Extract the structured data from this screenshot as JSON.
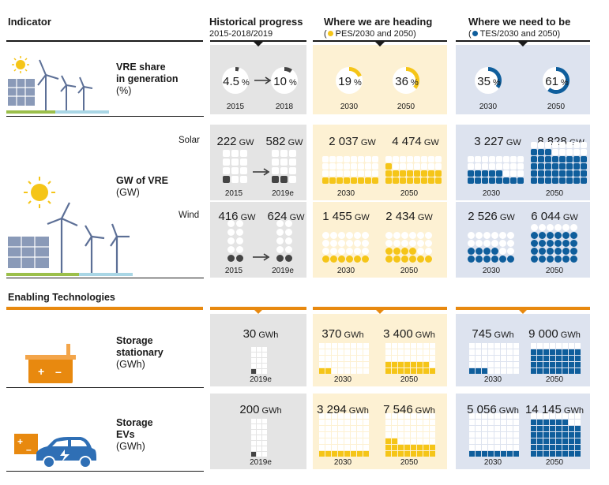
{
  "headers": {
    "indicator": "Indicator",
    "historical": "Historical progress",
    "historical_sub": "2015-2018/2019",
    "heading": "Where we are heading",
    "heading_sub_open": "(",
    "heading_sub_text": "PES/2030 and 2050)",
    "need": "Where we need to be",
    "need_sub_open": "(",
    "need_sub_text": "TES/2030 and 2050)",
    "enabling": "Enabling Technologies"
  },
  "rows": {
    "vre_share": {
      "line1": "VRE share",
      "line2": "in generation",
      "unit": "(%)"
    },
    "gw_vre": {
      "line1": "GW of VRE",
      "unit": "(GW)",
      "solar": "Solar",
      "wind": "Wind"
    },
    "stationary": {
      "line1": "Storage",
      "line2": "stationary",
      "unit": "(GWh)"
    },
    "evs": {
      "line1": "Storage",
      "line2": "EVs",
      "unit": "(GWh)"
    }
  },
  "units": {
    "pct": "%",
    "gw": "GW",
    "gwh": "GWh"
  },
  "colors": {
    "historical": "#444444",
    "pes": "#f5c518",
    "tes": "#0f5e9c",
    "accent": "#e8890f"
  },
  "icons": [
    "sun-icon",
    "solar-panel-icon",
    "wind-turbine-icon",
    "battery-icon",
    "electric-car-icon",
    "arrow-right-icon"
  ],
  "chart_data": [
    {
      "type": "pie",
      "title": "VRE share in generation",
      "unit": "%",
      "series": [
        {
          "name": "Historical progress",
          "x": [
            "2015",
            "2018"
          ],
          "values": [
            4.5,
            10
          ],
          "labels": [
            "4.5",
            "10"
          ]
        },
        {
          "name": "PES",
          "x": [
            "2030",
            "2050"
          ],
          "values": [
            19,
            36
          ],
          "labels": [
            "19",
            "36"
          ]
        },
        {
          "name": "TES",
          "x": [
            "2030",
            "2050"
          ],
          "values": [
            35,
            61
          ],
          "labels": [
            "35",
            "61"
          ]
        }
      ]
    },
    {
      "type": "table",
      "title": "Solar",
      "unit": "GW",
      "series": [
        {
          "name": "Historical progress",
          "x": [
            "2015",
            "2019e"
          ],
          "values": [
            222,
            582
          ],
          "labels": [
            "222",
            "582"
          ]
        },
        {
          "name": "PES",
          "x": [
            "2030",
            "2050"
          ],
          "values": [
            2037,
            4474
          ],
          "labels": [
            "2 037",
            "4 474"
          ]
        },
        {
          "name": "TES",
          "x": [
            "2030",
            "2050"
          ],
          "values": [
            3227,
            8828
          ],
          "labels": [
            "3 227",
            "8 828"
          ]
        }
      ]
    },
    {
      "type": "table",
      "title": "Wind",
      "unit": "GW",
      "series": [
        {
          "name": "Historical progress",
          "x": [
            "2015",
            "2019e"
          ],
          "values": [
            416,
            624
          ],
          "labels": [
            "416",
            "624"
          ]
        },
        {
          "name": "PES",
          "x": [
            "2030",
            "2050"
          ],
          "values": [
            1455,
            2434
          ],
          "labels": [
            "1 455",
            "2 434"
          ]
        },
        {
          "name": "TES",
          "x": [
            "2030",
            "2050"
          ],
          "values": [
            2526,
            6044
          ],
          "labels": [
            "2 526",
            "6 044"
          ]
        }
      ]
    },
    {
      "type": "table",
      "title": "Storage stationary",
      "unit": "GWh",
      "series": [
        {
          "name": "Historical progress",
          "x": [
            "2019e"
          ],
          "values": [
            30
          ],
          "labels": [
            "30"
          ]
        },
        {
          "name": "PES",
          "x": [
            "2030",
            "2050"
          ],
          "values": [
            370,
            3400
          ],
          "labels": [
            "370",
            "3 400"
          ]
        },
        {
          "name": "TES",
          "x": [
            "2030",
            "2050"
          ],
          "values": [
            745,
            9000
          ],
          "labels": [
            "745",
            "9 000"
          ]
        }
      ]
    },
    {
      "type": "table",
      "title": "Storage EVs",
      "unit": "GWh",
      "series": [
        {
          "name": "Historical progress",
          "x": [
            "2019e"
          ],
          "values": [
            200
          ],
          "labels": [
            "200"
          ]
        },
        {
          "name": "PES",
          "x": [
            "2030",
            "2050"
          ],
          "values": [
            3294,
            7546
          ],
          "labels": [
            "3 294",
            "7 546"
          ]
        },
        {
          "name": "TES",
          "x": [
            "2030",
            "2050"
          ],
          "values": [
            5056,
            14145
          ],
          "labels": [
            "5 056",
            "14 145"
          ]
        }
      ]
    }
  ]
}
